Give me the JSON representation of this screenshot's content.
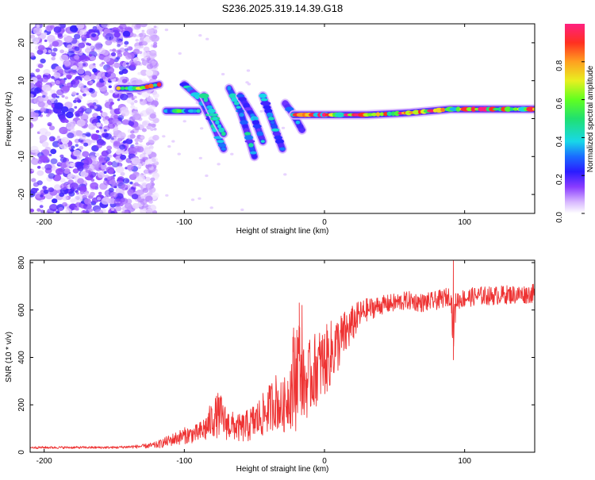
{
  "figure": {
    "title": "S236.2025.319.14.39.G18"
  },
  "chart_data": [
    {
      "type": "heatmap",
      "name": "spectrogram",
      "xlabel": "Height of straight line (km)",
      "ylabel": "Frequency (Hz)",
      "xlim": [
        -210,
        150
      ],
      "ylim": [
        -25,
        25
      ],
      "xticks": [
        -200,
        -100,
        0,
        100
      ],
      "yticks": [
        -20,
        -10,
        0,
        10,
        20
      ],
      "colorbar": {
        "label": "Normalized spectral amplitude",
        "range": [
          0,
          1
        ],
        "ticks": [
          0.0,
          0.2,
          0.4,
          0.6,
          0.8
        ]
      },
      "noise_region": {
        "x": [
          -210,
          -120
        ],
        "y": [
          -25,
          25
        ],
        "amplitude": 0.12
      },
      "ridges": [
        {
          "points": [
            [
              -147,
              8
            ],
            [
              -132,
              8
            ],
            [
              -118,
              9
            ]
          ],
          "amplitude": 0.85
        },
        {
          "points": [
            [
              -113,
              2
            ],
            [
              -100,
              2
            ],
            [
              -90,
              2
            ]
          ],
          "amplitude": 0.6
        },
        {
          "points": [
            [
              -100,
              9
            ],
            [
              -88,
              5
            ],
            [
              -80,
              -1
            ],
            [
              -72,
              -8
            ]
          ],
          "amplitude": 0.45
        },
        {
          "points": [
            [
              -86,
              6
            ],
            [
              -78,
              0
            ],
            [
              -72,
              -4
            ]
          ],
          "amplitude": 0.45
        },
        {
          "points": [
            [
              -68,
              8
            ],
            [
              -60,
              2
            ],
            [
              -54,
              -5
            ],
            [
              -50,
              -10
            ]
          ],
          "amplitude": 0.45
        },
        {
          "points": [
            [
              -60,
              6
            ],
            [
              -50,
              0
            ],
            [
              -44,
              -6
            ]
          ],
          "amplitude": 0.4
        },
        {
          "points": [
            [
              -44,
              6
            ],
            [
              -36,
              -2
            ],
            [
              -30,
              -8
            ]
          ],
          "amplitude": 0.4
        },
        {
          "points": [
            [
              -28,
              4
            ],
            [
              -22,
              1
            ],
            [
              -16,
              -3
            ]
          ],
          "amplitude": 0.35
        },
        {
          "points": [
            [
              -22,
              1
            ],
            [
              0,
              1
            ],
            [
              30,
              1
            ],
            [
              60,
              1.5
            ],
            [
              90,
              2.5
            ],
            [
              120,
              2.5
            ],
            [
              150,
              2.5
            ]
          ],
          "amplitude": 0.95
        }
      ]
    },
    {
      "type": "line",
      "name": "snr",
      "xlabel": "Height of straight line (km)",
      "ylabel": "SNR (10 * v/v)",
      "xlim": [
        -210,
        150
      ],
      "ylim": [
        0,
        810
      ],
      "xticks": [
        -200,
        -100,
        0,
        100
      ],
      "yticks": [
        0,
        200,
        400,
        600,
        800
      ],
      "series": [
        {
          "name": "SNR",
          "color": "#ee3333",
          "x": [
            -210,
            -180,
            -150,
            -130,
            -120,
            -110,
            -100,
            -90,
            -85,
            -80,
            -75,
            -70,
            -65,
            -60,
            -55,
            -50,
            -45,
            -40,
            -35,
            -30,
            -25,
            -22,
            -20,
            -18,
            -16,
            -14,
            -10,
            -5,
            0,
            5,
            10,
            15,
            20,
            25,
            30,
            40,
            50,
            60,
            70,
            80,
            90,
            92,
            94,
            100,
            110,
            120,
            130,
            140,
            150
          ],
          "y": [
            20,
            20,
            20,
            25,
            30,
            50,
            70,
            80,
            100,
            140,
            160,
            120,
            110,
            100,
            110,
            130,
            150,
            180,
            220,
            180,
            250,
            300,
            350,
            400,
            300,
            280,
            320,
            360,
            380,
            420,
            460,
            500,
            540,
            580,
            600,
            620,
            630,
            640,
            630,
            640,
            660,
            520,
            640,
            650,
            660,
            660,
            665,
            665,
            670
          ],
          "noise": [
            5,
            5,
            5,
            8,
            15,
            25,
            35,
            40,
            60,
            80,
            100,
            70,
            60,
            60,
            70,
            80,
            90,
            100,
            120,
            110,
            130,
            250,
            250,
            180,
            160,
            150,
            160,
            160,
            150,
            140,
            120,
            100,
            80,
            60,
            50,
            40,
            40,
            40,
            40,
            40,
            40,
            120,
            40,
            40,
            40,
            40,
            40,
            40,
            40
          ],
          "spikes": [
            [
              -18,
              630
            ],
            [
              -16,
              620
            ],
            [
              92,
              810
            ],
            [
              92,
              390
            ]
          ]
        }
      ]
    }
  ]
}
